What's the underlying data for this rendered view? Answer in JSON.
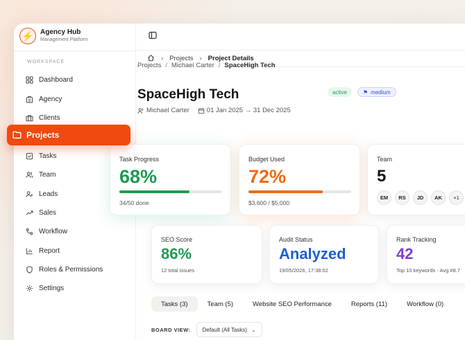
{
  "brand": {
    "title": "Agency Hub",
    "subtitle": "Management Platform",
    "logo_icon": "bolt-icon",
    "accent": "#ef4a10"
  },
  "sidebar": {
    "section_label": "WORKSPACE",
    "items": [
      {
        "label": "Dashboard",
        "icon": "grid-icon"
      },
      {
        "label": "Agency",
        "icon": "building-icon"
      },
      {
        "label": "Clients",
        "icon": "briefcase-icon"
      },
      {
        "label": "Projects",
        "icon": "folder-icon",
        "active": true
      },
      {
        "label": "Tasks",
        "icon": "checkbox-icon"
      },
      {
        "label": "Team",
        "icon": "users-icon"
      },
      {
        "label": "Leads",
        "icon": "user-plus-icon"
      },
      {
        "label": "Sales",
        "icon": "trending-up-icon"
      },
      {
        "label": "Workflow",
        "icon": "workflow-icon"
      },
      {
        "label": "Report",
        "icon": "bar-chart-icon"
      },
      {
        "label": "Roles & Permissions",
        "icon": "shield-icon"
      },
      {
        "label": "Settings",
        "icon": "gear-icon"
      }
    ]
  },
  "breadcrumb_top": {
    "home_icon": "home-icon",
    "projects": "Projects",
    "current": "Project Details"
  },
  "breadcrumb_content": {
    "projects": "Projects",
    "client": "Michael Carter",
    "current": "SpaceHigh Tech",
    "sep": "/"
  },
  "project": {
    "title": "SpaceHigh Tech",
    "status": "active",
    "priority": "medium",
    "owner": "Michael Carter",
    "dates": "01 Jan 2025 → 31 Dec 2025"
  },
  "stats": {
    "progress": {
      "label": "Task Progress",
      "value": "68%",
      "fraction": 0.68,
      "sub": "34/50 done",
      "color": "#1f9a52"
    },
    "budget": {
      "label": "Budget Used",
      "value": "72%",
      "fraction": 0.72,
      "sub": "$3,600 / $5,000",
      "color": "#f06a14"
    },
    "team": {
      "label": "Team",
      "value": "5",
      "avatars": [
        "EM",
        "RS",
        "JD",
        "AK",
        "+1"
      ]
    }
  },
  "seo": {
    "score": {
      "label": "SEO Score",
      "value": "86%",
      "sub": "12 total issues",
      "color": "#1f9a52"
    },
    "audit": {
      "label": "Audit Status",
      "value": "Analyzed",
      "sub": "19/05/2026, 17:38:02",
      "color": "#1e5fd0"
    },
    "rank": {
      "label": "Rank Tracking",
      "value": "42",
      "sub": "Top 10 keywords - Avg #8.7",
      "color": "#7a3fd6"
    }
  },
  "tabs": [
    "Tasks (3)",
    "Team (5)",
    "Website SEO Performance",
    "Reports (11)",
    "Workflow (0)"
  ],
  "board": {
    "label": "BOARD VIEW:",
    "value": "Default (All Tasks)"
  }
}
